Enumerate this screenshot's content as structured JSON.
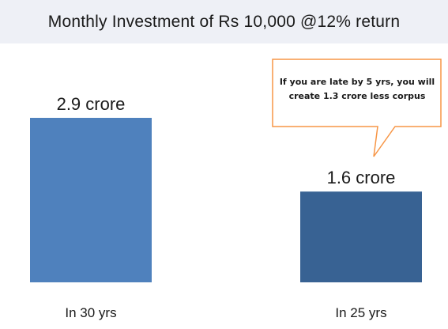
{
  "title": "Monthly Investment of Rs 10,000 @12% return",
  "callout": {
    "line1": "If you are late by 5 yrs, you will",
    "line2": "create 1.3  crore less corpus"
  },
  "colors": {
    "bar1": "#4f81bd",
    "bar2": "#386293",
    "callout_border": "#f79646",
    "title_band": "#eef0f6"
  },
  "chart_data": {
    "type": "bar",
    "categories": [
      "In 30 yrs",
      "In 25 yrs"
    ],
    "values": [
      2.9,
      1.6
    ],
    "data_labels": [
      "2.9 crore",
      "1.6 crore"
    ],
    "title": "Monthly Investment of Rs 10,000 @12% return",
    "xlabel": "",
    "ylabel": "",
    "ylim": [
      0,
      2.9
    ],
    "grid": false,
    "legend": "none",
    "annotations": [
      "If you are late by 5 yrs, you will create 1.3  crore less corpus"
    ]
  }
}
